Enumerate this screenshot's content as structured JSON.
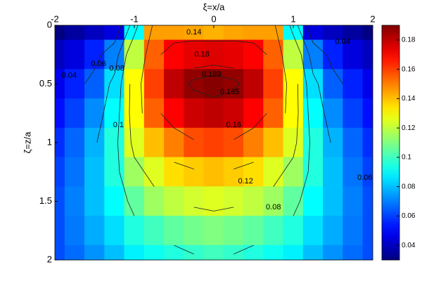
{
  "chart_data": {
    "type": "contour",
    "xlabel": "ξ=x/a",
    "ylabel": "ζ=z/a",
    "x": [
      -2,
      -1.75,
      -1.5,
      -1.25,
      -1,
      -0.75,
      -0.5,
      -0.25,
      0,
      0.25,
      0.5,
      0.75,
      1,
      1.25,
      1.5,
      1.75,
      2
    ],
    "y": [
      0,
      0.25,
      0.5,
      0.75,
      1,
      1.25,
      1.5,
      1.75,
      2
    ],
    "z": [
      [
        0.03,
        0.035,
        0.04,
        0.045,
        0.09,
        0.145,
        0.145,
        0.144,
        0.142,
        0.144,
        0.145,
        0.145,
        0.09,
        0.045,
        0.04,
        0.035,
        0.03
      ],
      [
        0.04,
        0.045,
        0.055,
        0.07,
        0.12,
        0.155,
        0.17,
        0.174,
        0.175,
        0.174,
        0.17,
        0.155,
        0.12,
        0.07,
        0.055,
        0.045,
        0.04
      ],
      [
        0.047,
        0.055,
        0.065,
        0.085,
        0.13,
        0.16,
        0.18,
        0.187,
        0.189,
        0.187,
        0.18,
        0.16,
        0.13,
        0.085,
        0.065,
        0.055,
        0.047
      ],
      [
        0.052,
        0.06,
        0.072,
        0.09,
        0.13,
        0.155,
        0.17,
        0.178,
        0.18,
        0.178,
        0.17,
        0.155,
        0.13,
        0.09,
        0.072,
        0.06,
        0.052
      ],
      [
        0.057,
        0.066,
        0.078,
        0.095,
        0.125,
        0.14,
        0.15,
        0.158,
        0.16,
        0.158,
        0.15,
        0.14,
        0.125,
        0.095,
        0.078,
        0.066,
        0.057
      ],
      [
        0.06,
        0.068,
        0.08,
        0.095,
        0.115,
        0.125,
        0.135,
        0.138,
        0.14,
        0.138,
        0.135,
        0.125,
        0.115,
        0.095,
        0.08,
        0.068,
        0.06
      ],
      [
        0.062,
        0.07,
        0.08,
        0.09,
        0.105,
        0.115,
        0.12,
        0.123,
        0.125,
        0.123,
        0.12,
        0.115,
        0.105,
        0.09,
        0.08,
        0.07,
        0.062
      ],
      [
        0.062,
        0.069,
        0.077,
        0.085,
        0.095,
        0.1,
        0.105,
        0.108,
        0.11,
        0.108,
        0.105,
        0.1,
        0.095,
        0.085,
        0.077,
        0.069,
        0.062
      ],
      [
        0.062,
        0.067,
        0.073,
        0.08,
        0.088,
        0.092,
        0.095,
        0.098,
        0.1,
        0.098,
        0.095,
        0.092,
        0.088,
        0.08,
        0.073,
        0.067,
        0.062
      ]
    ],
    "xlim": [
      -2,
      2
    ],
    "ylim": [
      0,
      2
    ],
    "y_reversed": true,
    "x_axis_position": "top",
    "xticks": [
      -2,
      -1,
      0,
      1,
      2
    ],
    "yticks": [
      0,
      0.5,
      1,
      1.5,
      2
    ],
    "colormap": "jet",
    "clim": [
      0.03,
      0.19
    ],
    "cticks": [
      0.04,
      0.06,
      0.08,
      0.1,
      0.12,
      0.14,
      0.16,
      0.18
    ],
    "levels": [
      0.04,
      0.06,
      0.08,
      0.1,
      0.12,
      0.14,
      0.16,
      0.18,
      0.185,
      0.189
    ],
    "contour_labels": [
      {
        "text": 0.14,
        "x": -0.25,
        "y": 0.06
      },
      {
        "text": 0.18,
        "x": -0.15,
        "y": 0.25
      },
      {
        "text": 0.189,
        "x": -0.03,
        "y": 0.42
      },
      {
        "text": 0.185,
        "x": 0.2,
        "y": 0.57
      },
      {
        "text": 0.16,
        "x": 0.25,
        "y": 0.85
      },
      {
        "text": 0.12,
        "x": 0.4,
        "y": 1.33
      },
      {
        "text": 0.1,
        "x": -1.2,
        "y": 0.85
      },
      {
        "text": 0.08,
        "x": -1.22,
        "y": 0.37
      },
      {
        "text": 0.06,
        "x": -1.45,
        "y": 0.33
      },
      {
        "text": 0.04,
        "x": -1.82,
        "y": 0.43
      },
      {
        "text": 0.04,
        "x": 1.62,
        "y": 0.14
      },
      {
        "text": 0.06,
        "x": 1.9,
        "y": 1.3
      },
      {
        "text": 0.08,
        "x": 0.75,
        "y": 1.55
      }
    ]
  }
}
